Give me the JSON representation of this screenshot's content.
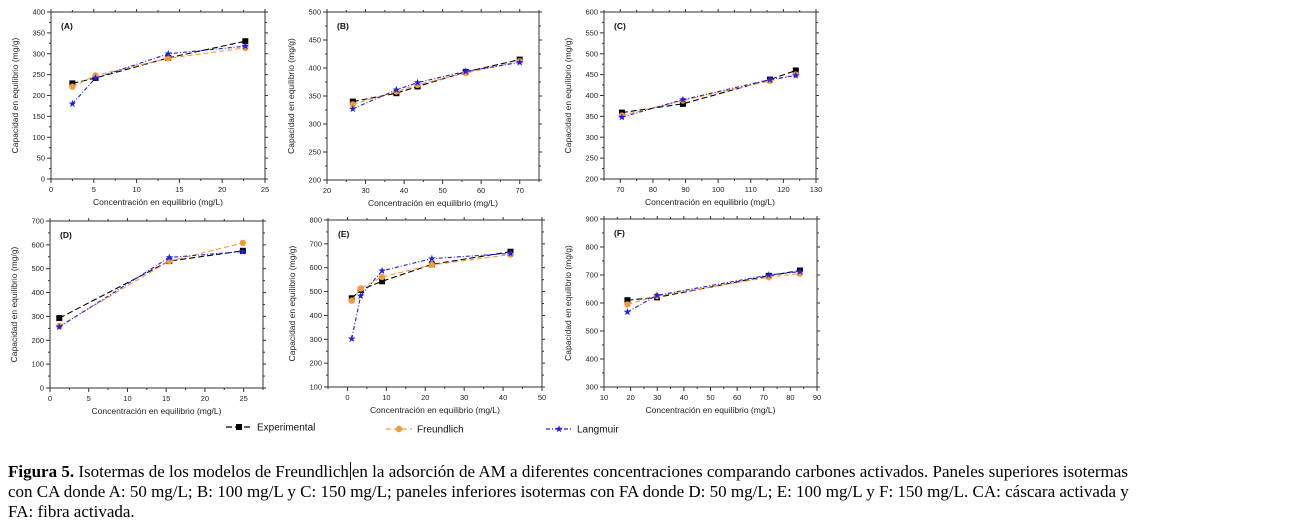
{
  "legend": [
    {
      "name": "Experimental",
      "color": "#000000",
      "marker": "square"
    },
    {
      "name": "Freundlich",
      "color": "#f39a3c",
      "marker": "circle"
    },
    {
      "name": "Langmuir",
      "color": "#1f1fe6",
      "marker": "star"
    }
  ],
  "caption": {
    "label": "Figura 5.",
    "line1_a": "Isotermas de los modelos de Freundlich",
    "line1_b": "en la adsorción de AM a diferentes concentraciones comparando carbones activados. Paneles superiores isotermas",
    "line2": "con CA donde A: 50 mg/L; B: 100 mg/L y C: 150 mg/L; paneles inferiores isotermas con FA donde D: 50 mg/L; E: 100 mg/L y F: 150 mg/L. CA: cáscara activada y",
    "line3": "FA: fibra activada."
  },
  "chart_data": [
    {
      "type": "line",
      "title": "(A)",
      "xlabel": "Concentración en equilibrio (mg/L)",
      "ylabel": "Capacidad en equilibrio (mg/g)",
      "xlim": [
        0,
        25
      ],
      "ylim": [
        0,
        400
      ],
      "xticks": [
        0,
        5,
        10,
        15,
        20,
        25
      ],
      "yticks": [
        0,
        50,
        100,
        150,
        200,
        250,
        300,
        350,
        400
      ],
      "x": [
        2.5,
        5.2,
        13.7,
        22.7
      ],
      "series": [
        {
          "name": "Experimental",
          "values": [
            229,
            242,
            290,
            330
          ]
        },
        {
          "name": "Freundlich",
          "values": [
            221,
            248,
            289,
            314
          ]
        },
        {
          "name": "Langmuir",
          "values": [
            180,
            242,
            300,
            318
          ]
        }
      ]
    },
    {
      "type": "line",
      "title": "(B)",
      "xlabel": "Concentración en equilibrio (mg/L)",
      "ylabel": "Capacidad en equilibrio (mg/g)",
      "xlim": [
        20,
        75
      ],
      "ylim": [
        200,
        500
      ],
      "xticks": [
        20,
        30,
        40,
        50,
        60,
        70
      ],
      "yticks": [
        200,
        250,
        300,
        350,
        400,
        450,
        500
      ],
      "x": [
        26.7,
        38,
        43.5,
        56,
        70
      ],
      "series": [
        {
          "name": "Experimental",
          "values": [
            340,
            355,
            367,
            393,
            415
          ]
        },
        {
          "name": "Freundlich",
          "values": [
            335,
            358,
            370,
            391,
            412
          ]
        },
        {
          "name": "Langmuir",
          "values": [
            327,
            361,
            374,
            394,
            410
          ]
        }
      ]
    },
    {
      "type": "line",
      "title": "(C)",
      "xlabel": "Concentración en equilibrio (mg/L)",
      "ylabel": "Capacidad en equilibrio (mg/g)",
      "xlim": [
        65,
        130
      ],
      "ylim": [
        200,
        600
      ],
      "xticks": [
        70,
        80,
        90,
        100,
        110,
        120,
        130
      ],
      "yticks": [
        200,
        250,
        300,
        350,
        400,
        450,
        500,
        550,
        600
      ],
      "x": [
        70.5,
        89.2,
        115.9,
        123.8
      ],
      "series": [
        {
          "name": "Experimental",
          "values": [
            359,
            380,
            438,
            460
          ]
        },
        {
          "name": "Freundlich",
          "values": [
            352,
            388,
            435,
            450
          ]
        },
        {
          "name": "Langmuir",
          "values": [
            348,
            390,
            438,
            448
          ]
        }
      ]
    },
    {
      "type": "line",
      "title": "(D)",
      "xlabel": "Concentración en equilibrio (mg/L)",
      "ylabel": "Capacidad en equilibrio (mg/g)",
      "xlim": [
        0,
        27.5
      ],
      "ylim": [
        0,
        700
      ],
      "xticks": [
        0,
        5,
        10,
        15,
        20,
        25
      ],
      "yticks": [
        0,
        100,
        200,
        300,
        400,
        500,
        600,
        700
      ],
      "x": [
        1.2,
        15.4,
        24.9
      ],
      "series": [
        {
          "name": "Experimental",
          "values": [
            293,
            532,
            575
          ]
        },
        {
          "name": "Freundlich",
          "values": [
            260,
            532,
            608
          ]
        },
        {
          "name": "Langmuir",
          "values": [
            256,
            547,
            572
          ]
        }
      ]
    },
    {
      "type": "line",
      "title": "(E)",
      "xlabel": "Concentración en equilibrio (mg/L)",
      "ylabel": "Capacidad en equilibrio (mg/g)",
      "xlim": [
        -5,
        50
      ],
      "ylim": [
        100,
        800
      ],
      "xticks": [
        0,
        10,
        20,
        30,
        40,
        50
      ],
      "yticks": [
        100,
        200,
        300,
        400,
        500,
        600,
        700,
        800
      ],
      "x": [
        1.1,
        3.4,
        8.9,
        21.7,
        41.9
      ],
      "series": [
        {
          "name": "Experimental",
          "values": [
            472,
            507,
            543,
            614,
            667
          ]
        },
        {
          "name": "Freundlich",
          "values": [
            462,
            513,
            561,
            612,
            655
          ]
        },
        {
          "name": "Langmuir",
          "values": [
            302,
            482,
            587,
            638,
            660
          ]
        }
      ]
    },
    {
      "type": "line",
      "title": "(F)",
      "xlabel": "Concentración en equilibrio (mg/L)",
      "ylabel": "Capacidad en equilibrio (mg/g)",
      "xlim": [
        10,
        90
      ],
      "ylim": [
        300,
        900
      ],
      "xticks": [
        10,
        20,
        30,
        40,
        50,
        60,
        70,
        80,
        90
      ],
      "yticks": [
        300,
        400,
        500,
        600,
        700,
        800,
        900
      ],
      "x": [
        18.8,
        29.9,
        71.9,
        83.6
      ],
      "series": [
        {
          "name": "Experimental",
          "values": [
            610,
            620,
            697,
            716
          ]
        },
        {
          "name": "Freundlich",
          "values": [
            595,
            625,
            692,
            705
          ]
        },
        {
          "name": "Langmuir",
          "values": [
            568,
            627,
            700,
            712
          ]
        }
      ]
    }
  ]
}
